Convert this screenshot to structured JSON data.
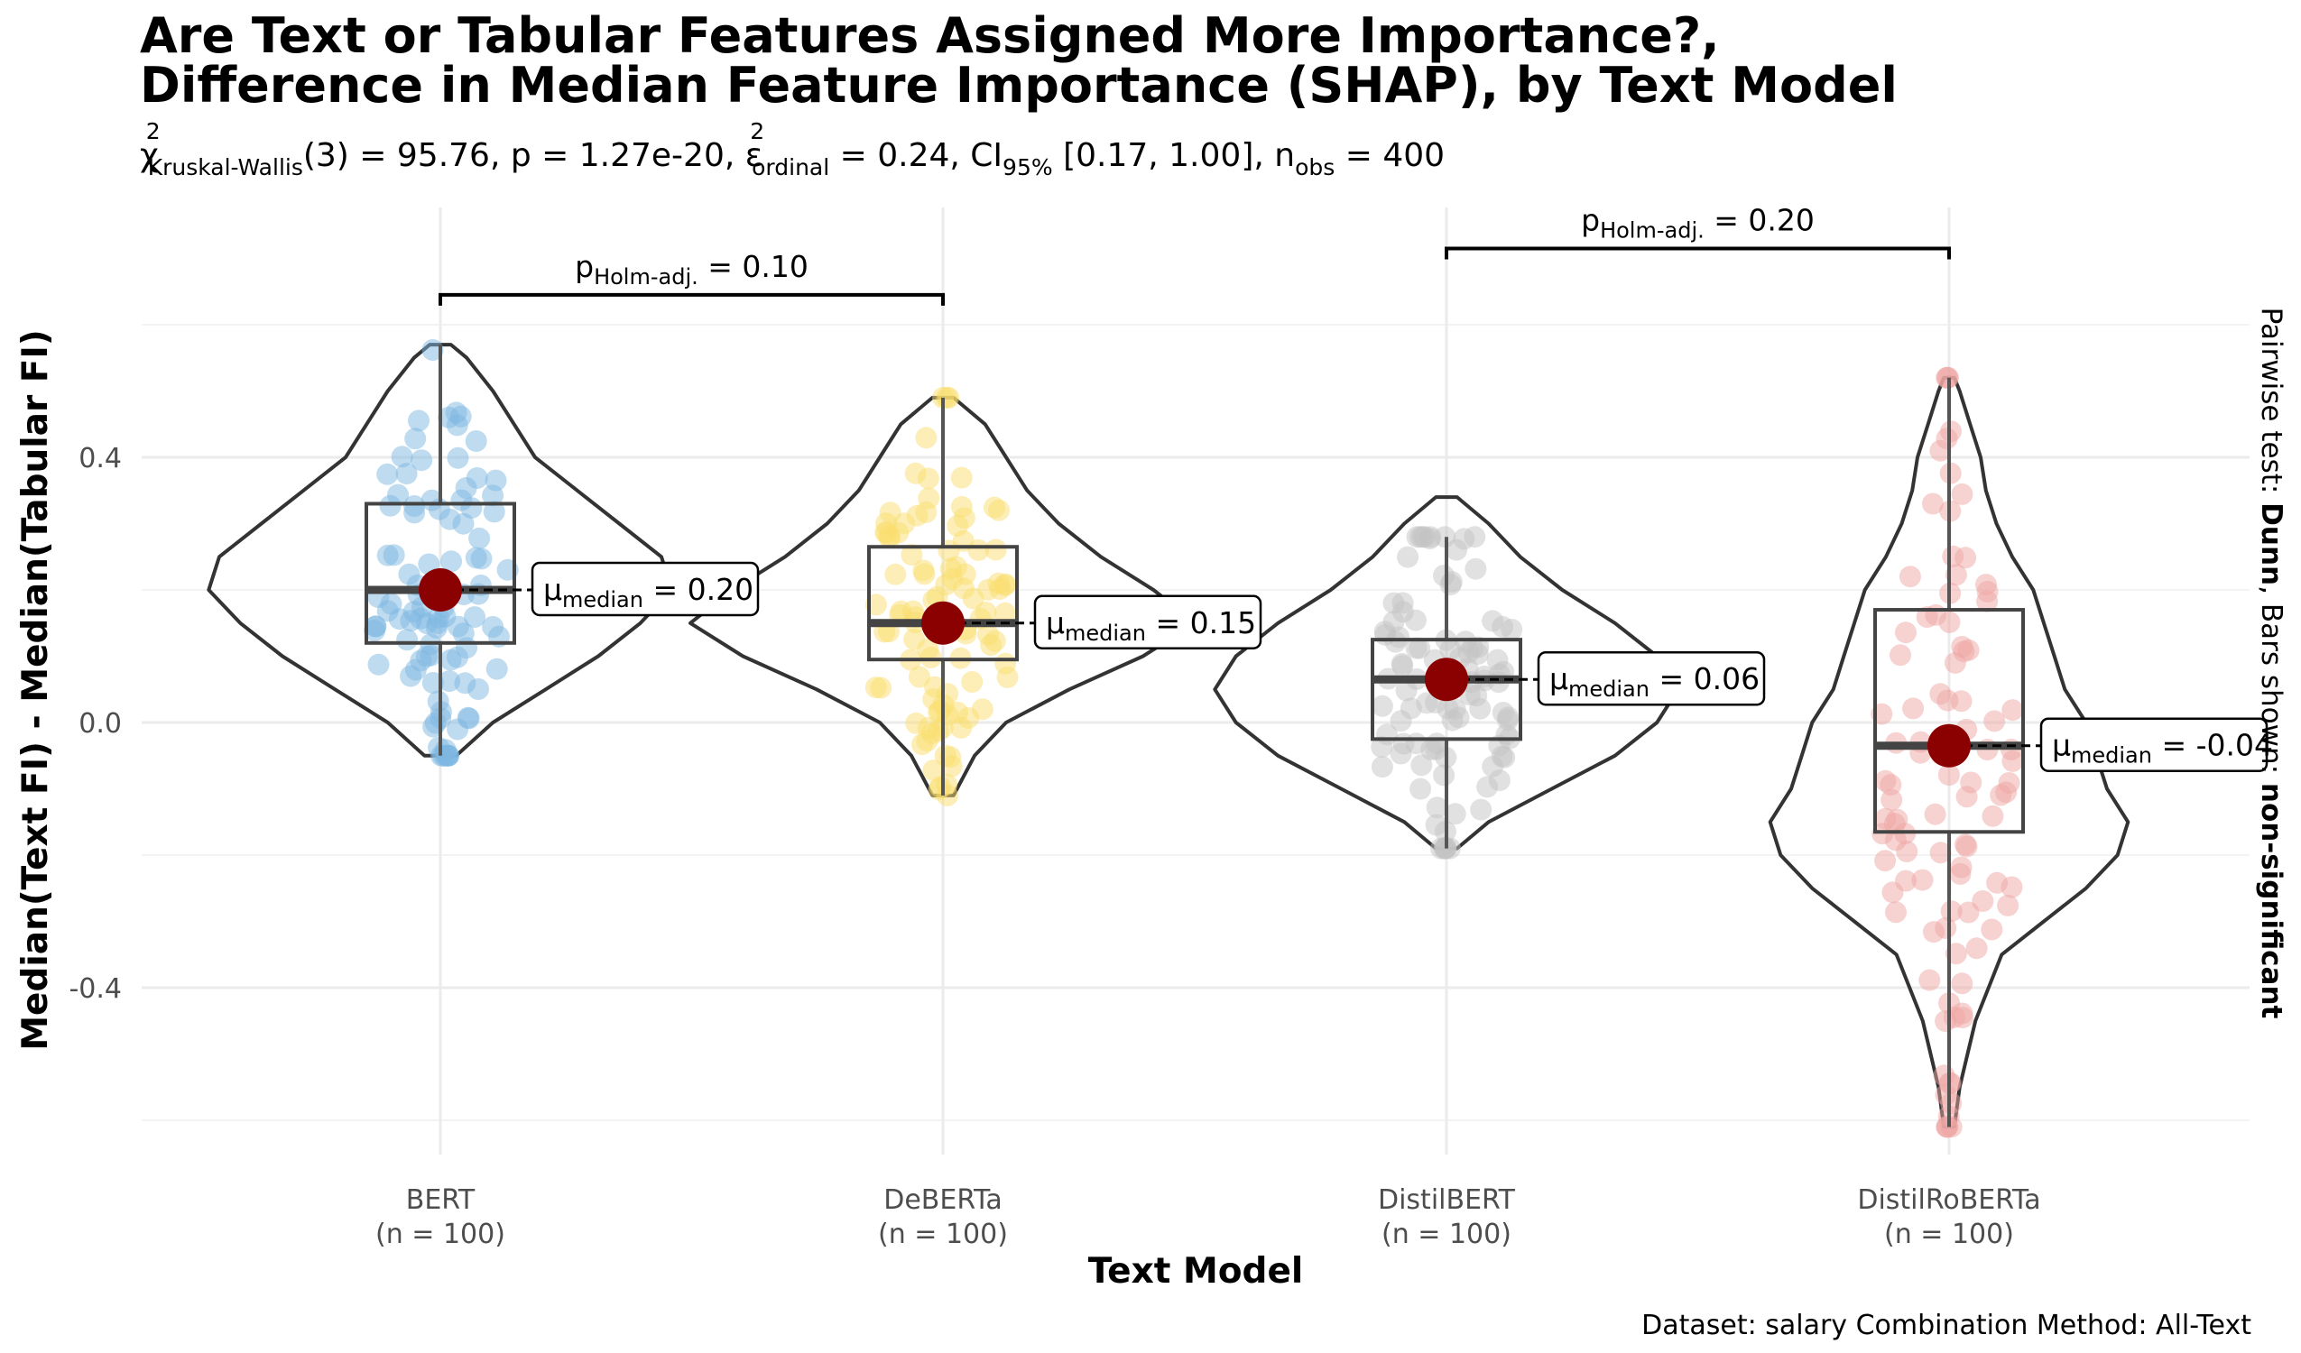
{
  "chart_data": {
    "type": "violin",
    "title_line1": "Are Text or Tabular Features Assigned More Importance?,",
    "title_line2": "Difference in Median Feature Importance (SHAP), by Text Model",
    "stats": {
      "chi_symbol": "χ",
      "chi_sup": "2",
      "chi_sub": "Kruskal-Wallis",
      "df_and_value": "(3) = 95.76, p = 1.27e-20, ",
      "epsilon_symbol": "ε",
      "epsilon_sup": "2",
      "epsilon_sub": "ordinal",
      "epsilon_value": " = 0.24, CI",
      "ci_sub": "95%",
      "ci_value": " [0.17, 1.00], n",
      "n_sub": "obs",
      "n_value": " = 400"
    },
    "xlabel": "Text Model",
    "ylabel": "Median(Text FI) - Median(Tabular FI)",
    "ylim": [
      -0.6,
      0.6
    ],
    "y_ticks": [
      {
        "value": 0.4,
        "label": "0.4"
      },
      {
        "value": 0.0,
        "label": "0.0"
      },
      {
        "value": -0.4,
        "label": "-0.4"
      }
    ],
    "grid": true,
    "caption": "Dataset:  salary Combination Method:  All-Text",
    "side_label": {
      "prefix": "Pairwise test: ",
      "test": "Dunn",
      "middle": ", Bars shown: ",
      "bars": "non-significant"
    },
    "median_symbol": "μ",
    "median_sub": "median",
    "groups": [
      {
        "name": "BERT",
        "n_label": "(n = 100)",
        "color": "#5DA5DA",
        "median": 0.2,
        "median_label": "0.20",
        "q1": 0.12,
        "q3": 0.33,
        "whisker_low": -0.05,
        "whisker_high": 0.57,
        "violin": [
          [
            -0.05,
            0.015
          ],
          [
            0.0,
            0.05
          ],
          [
            0.05,
            0.1
          ],
          [
            0.1,
            0.15
          ],
          [
            0.15,
            0.19
          ],
          [
            0.2,
            0.22
          ],
          [
            0.25,
            0.21
          ],
          [
            0.3,
            0.17
          ],
          [
            0.35,
            0.13
          ],
          [
            0.4,
            0.09
          ],
          [
            0.45,
            0.07
          ],
          [
            0.5,
            0.05
          ],
          [
            0.55,
            0.025
          ],
          [
            0.57,
            0.01
          ]
        ]
      },
      {
        "name": "DeBERTa",
        "n_label": "(n = 100)",
        "color": "#F7D54A",
        "median": 0.15,
        "median_label": "0.15",
        "q1": 0.095,
        "q3": 0.265,
        "whisker_low": -0.11,
        "whisker_high": 0.49,
        "violin": [
          [
            -0.11,
            0.01
          ],
          [
            -0.05,
            0.03
          ],
          [
            0.0,
            0.06
          ],
          [
            0.05,
            0.12
          ],
          [
            0.1,
            0.19
          ],
          [
            0.15,
            0.24
          ],
          [
            0.2,
            0.2
          ],
          [
            0.25,
            0.15
          ],
          [
            0.3,
            0.11
          ],
          [
            0.35,
            0.08
          ],
          [
            0.4,
            0.06
          ],
          [
            0.45,
            0.04
          ],
          [
            0.49,
            0.01
          ]
        ]
      },
      {
        "name": "DistilBERT",
        "n_label": "(n = 100)",
        "color": "#B5B5B5",
        "median": 0.065,
        "median_label": "0.06",
        "q1": -0.025,
        "q3": 0.125,
        "whisker_low": -0.19,
        "whisker_high": 0.28,
        "violin": [
          [
            -0.19,
            0.01
          ],
          [
            -0.15,
            0.04
          ],
          [
            -0.1,
            0.1
          ],
          [
            -0.05,
            0.16
          ],
          [
            0.0,
            0.2
          ],
          [
            0.05,
            0.22
          ],
          [
            0.1,
            0.2
          ],
          [
            0.15,
            0.16
          ],
          [
            0.2,
            0.11
          ],
          [
            0.25,
            0.07
          ],
          [
            0.3,
            0.04
          ],
          [
            0.34,
            0.01
          ]
        ]
      },
      {
        "name": "DistilRoBERTa",
        "n_label": "(n = 100)",
        "color": "#E8908C",
        "median": -0.035,
        "median_label": "-0.04",
        "q1": -0.165,
        "q3": 0.17,
        "whisker_low": -0.61,
        "whisker_high": 0.52,
        "violin": [
          [
            -0.61,
            0.005
          ],
          [
            -0.55,
            0.01
          ],
          [
            -0.45,
            0.025
          ],
          [
            -0.35,
            0.05
          ],
          [
            -0.3,
            0.09
          ],
          [
            -0.25,
            0.13
          ],
          [
            -0.2,
            0.16
          ],
          [
            -0.15,
            0.17
          ],
          [
            -0.1,
            0.15
          ],
          [
            -0.05,
            0.14
          ],
          [
            0.0,
            0.13
          ],
          [
            0.05,
            0.11
          ],
          [
            0.1,
            0.1
          ],
          [
            0.15,
            0.09
          ],
          [
            0.2,
            0.08
          ],
          [
            0.25,
            0.06
          ],
          [
            0.3,
            0.045
          ],
          [
            0.35,
            0.035
          ],
          [
            0.4,
            0.03
          ],
          [
            0.45,
            0.02
          ],
          [
            0.5,
            0.01
          ],
          [
            0.52,
            0.005
          ]
        ]
      }
    ],
    "brackets": [
      {
        "from": "BERT",
        "to": "DeBERTa",
        "y": 0.645,
        "label_prefix": "p",
        "label_sub": "Holm-adj.",
        "label_value": " = 0.10"
      },
      {
        "from": "DistilBERT",
        "to": "DistilRoBERTa",
        "y": 0.715,
        "label_prefix": "p",
        "label_sub": "Holm-adj.",
        "label_value": " = 0.20"
      }
    ]
  }
}
